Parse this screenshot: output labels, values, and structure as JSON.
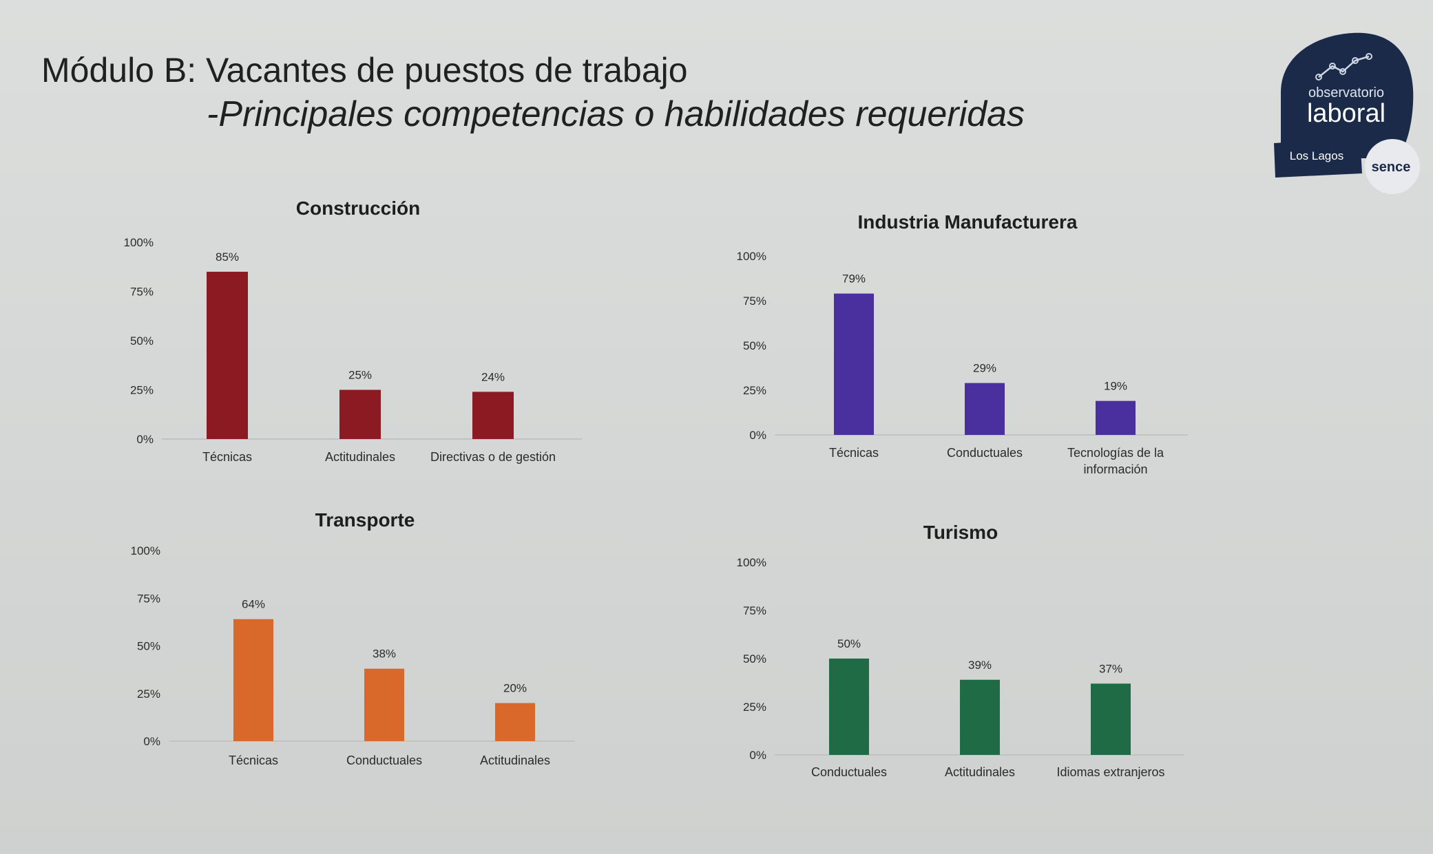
{
  "slide": {
    "title": "Módulo B: Vacantes de puestos de trabajo",
    "subtitle": "-Principales competencias o habilidades requeridas"
  },
  "logo": {
    "line1": "observatorio",
    "line2": "laboral",
    "region": "Los Lagos",
    "brand": "sence",
    "colors": {
      "badge": "#1a2a48",
      "text": "#ffffff"
    }
  },
  "chart_data": [
    {
      "type": "bar",
      "title": "Construcción",
      "categories": [
        "Técnicas",
        "Actitudinales",
        "Directivas o de gestión"
      ],
      "values": [
        85,
        25,
        24
      ],
      "labels": [
        "85%",
        "25%",
        "24%"
      ],
      "yticks": [
        "0%",
        "25%",
        "50%",
        "75%",
        "100%"
      ],
      "ylim": [
        0,
        100
      ],
      "color": "#8c1a22"
    },
    {
      "type": "bar",
      "title": "Industria Manufacturera",
      "categories": [
        "Técnicas",
        "Conductuales",
        "Tecnologías de la información"
      ],
      "values": [
        79,
        29,
        19
      ],
      "labels": [
        "79%",
        "29%",
        "19%"
      ],
      "yticks": [
        "0%",
        "25%",
        "50%",
        "75%",
        "100%"
      ],
      "ylim": [
        0,
        100
      ],
      "color": "#4a2f9e"
    },
    {
      "type": "bar",
      "title": "Transporte",
      "categories": [
        "Técnicas",
        "Conductuales",
        "Actitudinales"
      ],
      "values": [
        64,
        38,
        20
      ],
      "labels": [
        "64%",
        "38%",
        "20%"
      ],
      "yticks": [
        "0%",
        "25%",
        "50%",
        "75%",
        "100%"
      ],
      "ylim": [
        0,
        100
      ],
      "color": "#d9692a"
    },
    {
      "type": "bar",
      "title": "Turismo",
      "categories": [
        "Conductuales",
        "Actitudinales",
        "Idiomas extranjeros"
      ],
      "values": [
        50,
        39,
        37
      ],
      "labels": [
        "50%",
        "39%",
        "37%"
      ],
      "yticks": [
        "0%",
        "25%",
        "50%",
        "75%",
        "100%"
      ],
      "ylim": [
        0,
        100
      ],
      "color": "#1f6b45"
    }
  ]
}
